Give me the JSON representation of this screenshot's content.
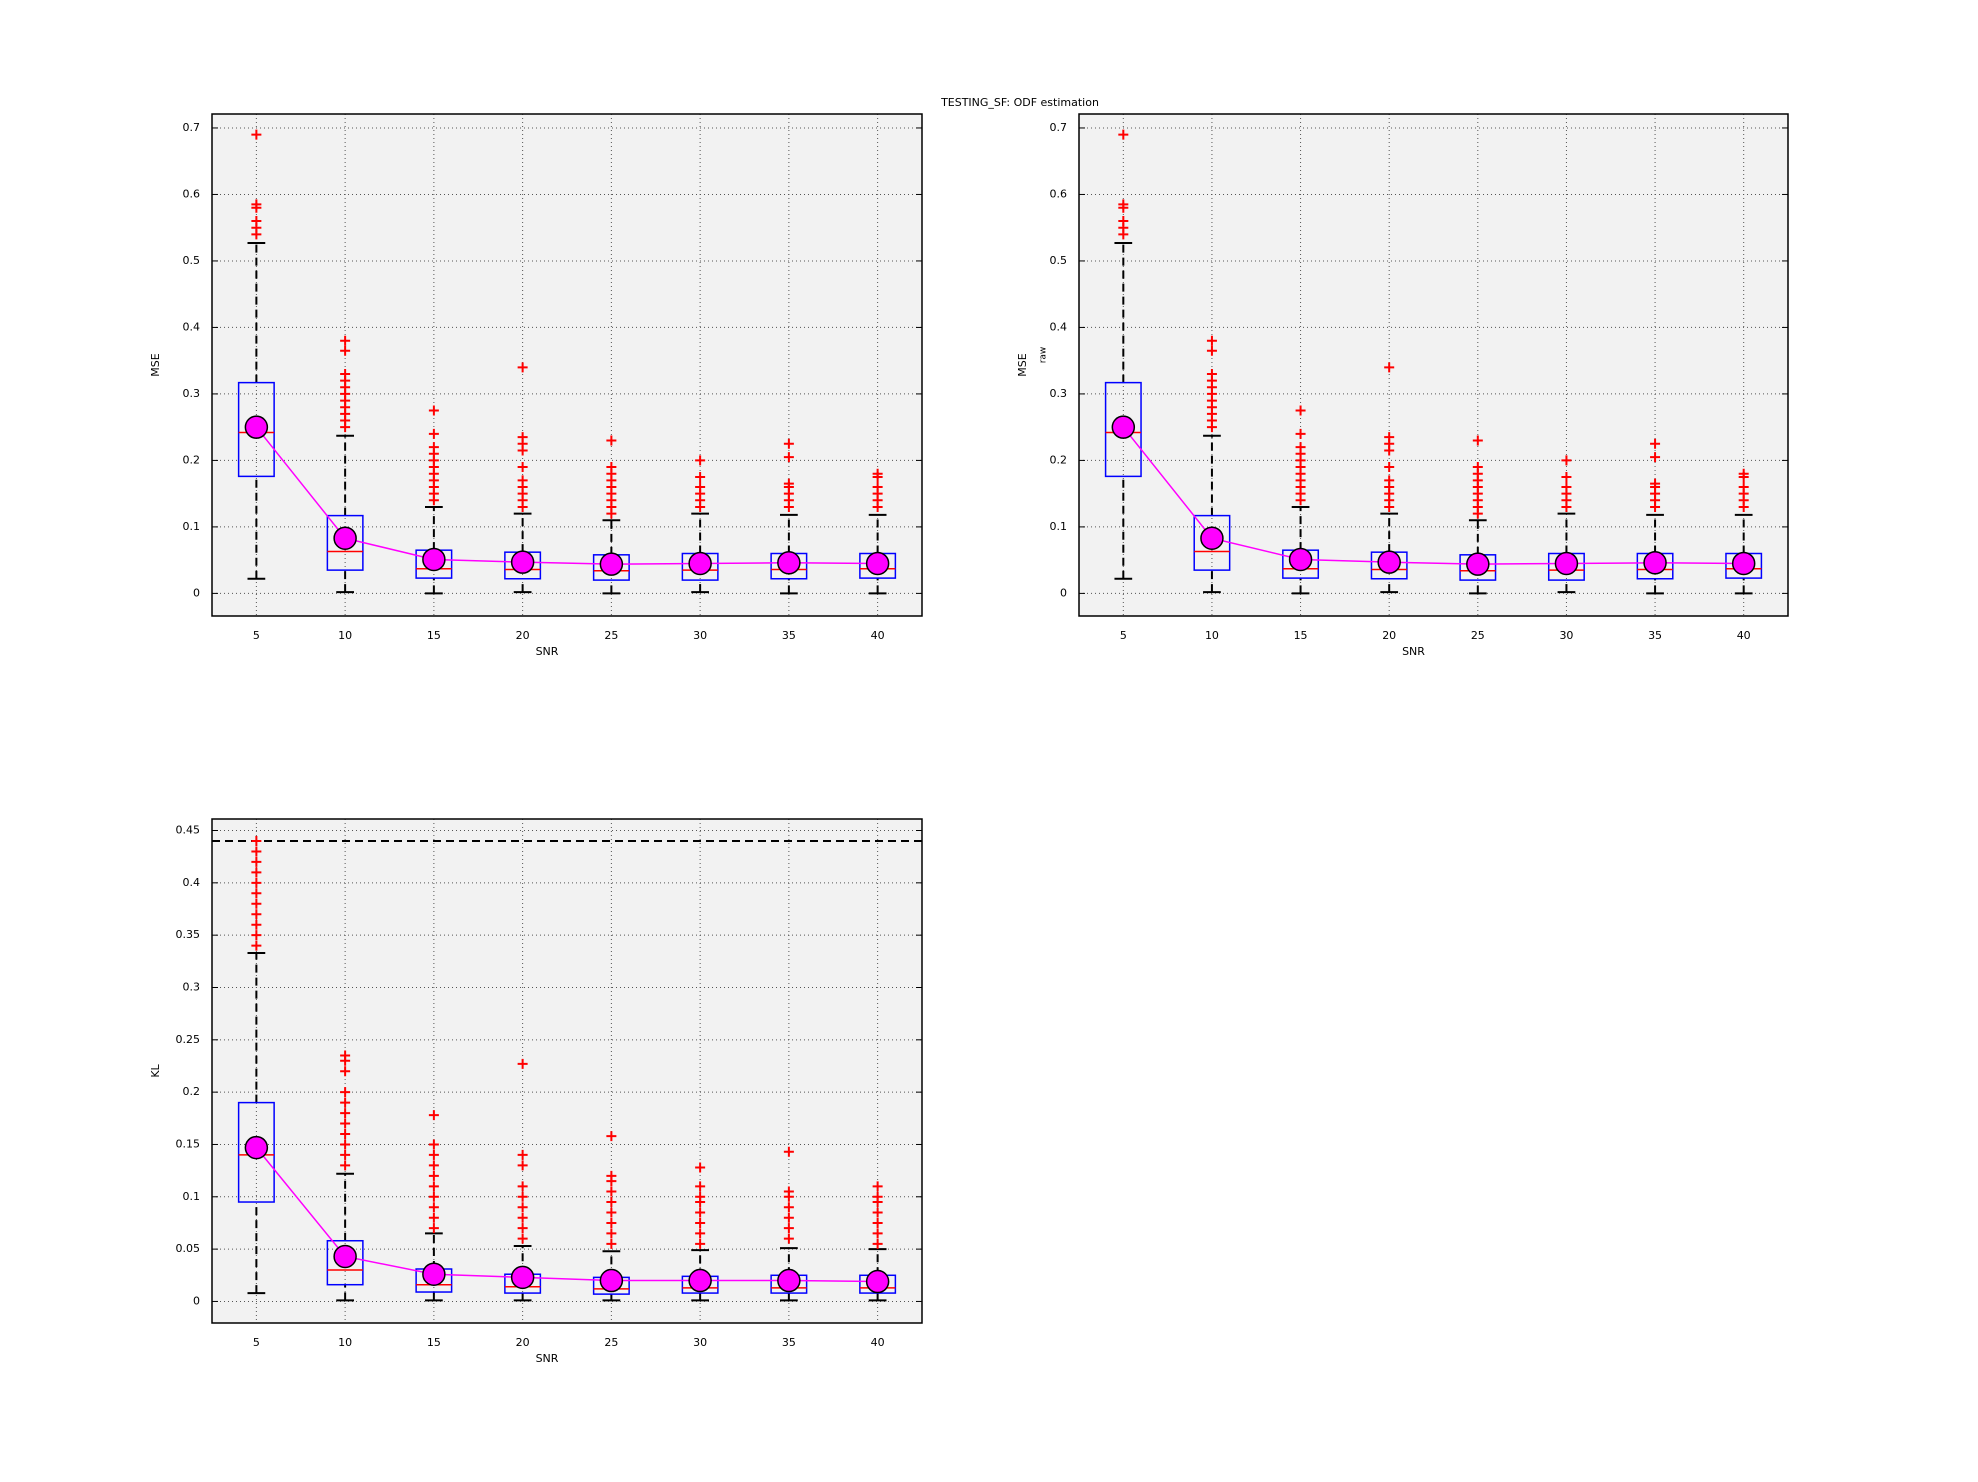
{
  "title": "TESTING_SF: ODF estimation",
  "chart_data": [
    {
      "type": "box",
      "xlabel": "SNR",
      "ylabel": "MSE",
      "categories": [
        "5",
        "10",
        "15",
        "20",
        "25",
        "30",
        "35",
        "40"
      ],
      "whisker_low": [
        0.022,
        0.002,
        0,
        0.002,
        0,
        0.002,
        0,
        0
      ],
      "q1": [
        0.176,
        0.035,
        0.023,
        0.022,
        0.02,
        0.02,
        0.022,
        0.023
      ],
      "median": [
        0.242,
        0.063,
        0.037,
        0.036,
        0.034,
        0.035,
        0.036,
        0.037
      ],
      "q3": [
        0.317,
        0.117,
        0.065,
        0.062,
        0.058,
        0.06,
        0.06,
        0.06
      ],
      "whisker_high": [
        0.527,
        0.237,
        0.13,
        0.12,
        0.11,
        0.12,
        0.118,
        0.118
      ],
      "means": [
        0.25,
        0.083,
        0.051,
        0.047,
        0.044,
        0.045,
        0.046,
        0.045
      ],
      "outliers": [
        [
          0.54,
          0.55,
          0.56,
          0.58,
          0.585,
          0.69
        ],
        [
          0.25,
          0.26,
          0.27,
          0.28,
          0.29,
          0.3,
          0.31,
          0.32,
          0.33,
          0.365,
          0.38
        ],
        [
          0.14,
          0.15,
          0.16,
          0.17,
          0.18,
          0.19,
          0.2,
          0.21,
          0.22,
          0.24,
          0.275
        ],
        [
          0.13,
          0.14,
          0.15,
          0.16,
          0.17,
          0.19,
          0.215,
          0.225,
          0.235,
          0.34
        ],
        [
          0.12,
          0.13,
          0.14,
          0.15,
          0.16,
          0.17,
          0.18,
          0.19,
          0.23
        ],
        [
          0.13,
          0.14,
          0.15,
          0.16,
          0.175,
          0.2
        ],
        [
          0.13,
          0.14,
          0.15,
          0.16,
          0.165,
          0.205,
          0.225
        ],
        [
          0.13,
          0.14,
          0.15,
          0.16,
          0.175,
          0.18
        ]
      ],
      "ylim": [
        -0.034,
        0.721
      ],
      "yticks": [
        0,
        0.1,
        0.2,
        0.3,
        0.4,
        0.5,
        0.6,
        0.7
      ],
      "grid": true,
      "box_color": "#0000ff",
      "median_color": "#ff0000",
      "outlier_color": "#ff0000",
      "mean_color": "#ff00ff",
      "whisker_color": "#000000",
      "background": "#f2f2f2"
    },
    {
      "type": "box",
      "xlabel": "SNR",
      "ylabel": "MSE",
      "ylabel_sub": "raw",
      "categories": [
        "5",
        "10",
        "15",
        "20",
        "25",
        "30",
        "35",
        "40"
      ],
      "whisker_low": [
        0.022,
        0.002,
        0,
        0.002,
        0,
        0.002,
        0,
        0
      ],
      "q1": [
        0.176,
        0.035,
        0.023,
        0.022,
        0.02,
        0.02,
        0.022,
        0.023
      ],
      "median": [
        0.242,
        0.063,
        0.037,
        0.036,
        0.034,
        0.035,
        0.036,
        0.037
      ],
      "q3": [
        0.317,
        0.117,
        0.065,
        0.062,
        0.058,
        0.06,
        0.06,
        0.06
      ],
      "whisker_high": [
        0.527,
        0.237,
        0.13,
        0.12,
        0.11,
        0.12,
        0.118,
        0.118
      ],
      "means": [
        0.25,
        0.083,
        0.051,
        0.047,
        0.044,
        0.045,
        0.046,
        0.045
      ],
      "outliers": [
        [
          0.54,
          0.55,
          0.56,
          0.58,
          0.585,
          0.69
        ],
        [
          0.25,
          0.26,
          0.27,
          0.28,
          0.29,
          0.3,
          0.31,
          0.32,
          0.33,
          0.365,
          0.38
        ],
        [
          0.14,
          0.15,
          0.16,
          0.17,
          0.18,
          0.19,
          0.2,
          0.21,
          0.22,
          0.24,
          0.275
        ],
        [
          0.13,
          0.14,
          0.15,
          0.16,
          0.17,
          0.19,
          0.215,
          0.225,
          0.235,
          0.34
        ],
        [
          0.12,
          0.13,
          0.14,
          0.15,
          0.16,
          0.17,
          0.18,
          0.19,
          0.23
        ],
        [
          0.13,
          0.14,
          0.15,
          0.16,
          0.175,
          0.2
        ],
        [
          0.13,
          0.14,
          0.15,
          0.16,
          0.165,
          0.205,
          0.225
        ],
        [
          0.13,
          0.14,
          0.15,
          0.16,
          0.175,
          0.18
        ]
      ],
      "ylim": [
        -0.034,
        0.721
      ],
      "yticks": [
        0,
        0.1,
        0.2,
        0.3,
        0.4,
        0.5,
        0.6,
        0.7
      ],
      "grid": true,
      "box_color": "#0000ff",
      "median_color": "#ff0000",
      "outlier_color": "#ff0000",
      "mean_color": "#ff00ff",
      "whisker_color": "#000000",
      "background": "#f2f2f2"
    },
    {
      "type": "box",
      "xlabel": "SNR",
      "ylabel": "KL",
      "categories": [
        "5",
        "10",
        "15",
        "20",
        "25",
        "30",
        "35",
        "40"
      ],
      "whisker_low": [
        0.008,
        0.001,
        0.001,
        0.001,
        0.001,
        0.001,
        0.001,
        0.001
      ],
      "q1": [
        0.095,
        0.016,
        0.009,
        0.008,
        0.007,
        0.008,
        0.008,
        0.008
      ],
      "median": [
        0.14,
        0.03,
        0.016,
        0.014,
        0.012,
        0.013,
        0.013,
        0.013
      ],
      "q3": [
        0.19,
        0.058,
        0.031,
        0.026,
        0.023,
        0.024,
        0.025,
        0.025
      ],
      "whisker_high": [
        0.333,
        0.122,
        0.065,
        0.053,
        0.048,
        0.049,
        0.051,
        0.05
      ],
      "means": [
        0.147,
        0.043,
        0.026,
        0.023,
        0.02,
        0.02,
        0.02,
        0.019
      ],
      "outliers": [
        [
          0.34,
          0.35,
          0.36,
          0.37,
          0.38,
          0.39,
          0.4,
          0.41,
          0.42,
          0.43,
          0.44
        ],
        [
          0.13,
          0.14,
          0.15,
          0.16,
          0.17,
          0.18,
          0.19,
          0.2,
          0.22,
          0.23,
          0.235
        ],
        [
          0.07,
          0.08,
          0.09,
          0.1,
          0.11,
          0.12,
          0.13,
          0.14,
          0.15,
          0.178
        ],
        [
          0.06,
          0.07,
          0.08,
          0.09,
          0.1,
          0.11,
          0.13,
          0.14,
          0.227
        ],
        [
          0.055,
          0.065,
          0.075,
          0.085,
          0.095,
          0.105,
          0.115,
          0.12,
          0.158
        ],
        [
          0.055,
          0.065,
          0.075,
          0.085,
          0.095,
          0.1,
          0.11,
          0.128
        ],
        [
          0.06,
          0.07,
          0.08,
          0.09,
          0.1,
          0.105,
          0.143
        ],
        [
          0.055,
          0.065,
          0.075,
          0.085,
          0.095,
          0.1,
          0.11
        ]
      ],
      "ylim": [
        -0.0206,
        0.461
      ],
      "yticks": [
        0,
        0.05,
        0.1,
        0.15,
        0.2,
        0.25,
        0.3,
        0.35,
        0.4,
        0.45
      ],
      "grid": true,
      "ref_line": 0.44,
      "box_color": "#0000ff",
      "median_color": "#ff0000",
      "outlier_color": "#ff0000",
      "mean_color": "#ff00ff",
      "whisker_color": "#000000",
      "background": "#f2f2f2"
    }
  ]
}
